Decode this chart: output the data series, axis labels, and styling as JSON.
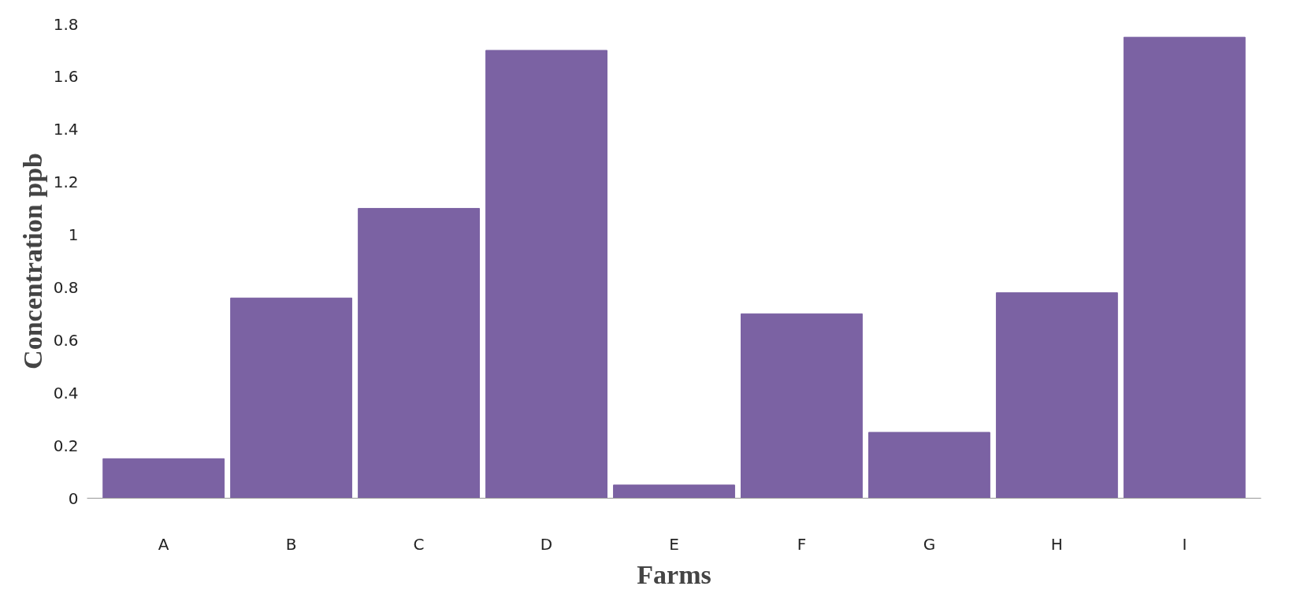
{
  "chart_data": {
    "type": "bar",
    "xlabel": "Farms",
    "ylabel": "Concentration ppb",
    "categories": [
      "A",
      "B",
      "C",
      "D",
      "E",
      "F",
      "G",
      "H",
      "I"
    ],
    "values": [
      0.15,
      0.76,
      1.1,
      1.7,
      0.05,
      0.7,
      0.25,
      0.78,
      1.75
    ],
    "color": "#7b62a3",
    "ylim": [
      0,
      1.8
    ],
    "yticks": [
      0,
      0.2,
      0.4,
      0.6,
      0.8,
      1,
      1.2,
      1.4,
      1.6,
      1.8
    ],
    "grid": false
  }
}
